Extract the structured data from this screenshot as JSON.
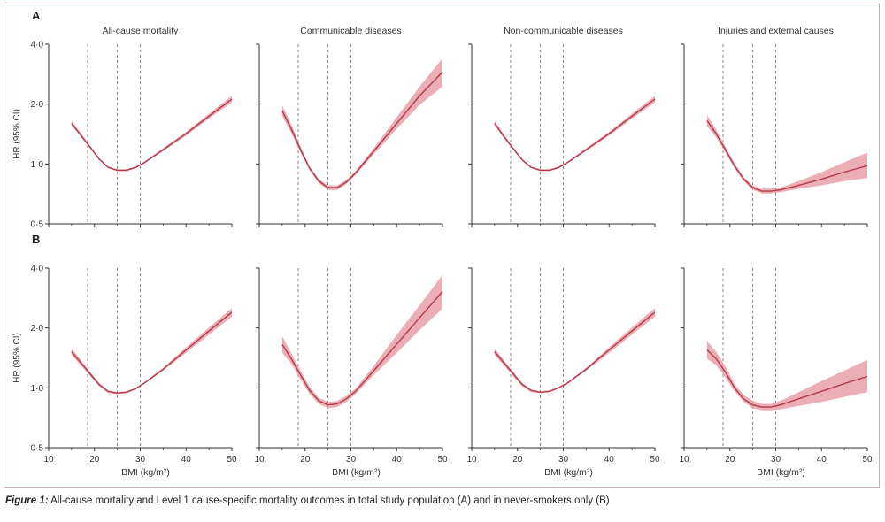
{
  "caption": {
    "label": "Figure 1:",
    "text": " All-cause mortality and Level 1 cause-specific mortality outcomes in total study population (A) and in never-smokers only (B)"
  },
  "chart_data": {
    "type": "line",
    "y_scale": "log",
    "ylabel": "HR (95% CI)",
    "xlabel": "BMI (kg/m²)",
    "xlim": [
      10,
      50
    ],
    "ylim": [
      0.5,
      4.0
    ],
    "x_ticks": [
      "10",
      "20",
      "30",
      "40",
      "50"
    ],
    "x_tick_values": [
      10,
      20,
      30,
      40,
      50
    ],
    "x_minor_ticks": [
      15,
      25,
      35,
      45
    ],
    "y_ticks": [
      "0·5",
      "1·0",
      "2·0",
      "4·0"
    ],
    "y_tick_values": [
      0.5,
      1.0,
      2.0,
      4.0
    ],
    "reference_lines_bmi": [
      18.5,
      25,
      30
    ],
    "colors": {
      "line": "#b5384a",
      "band": "#e8a0a7"
    },
    "rows": [
      {
        "label": "A",
        "panels": [
          {
            "title": "All-cause mortality",
            "x": [
              15,
              17,
              19,
              21,
              23,
              25,
              27,
              29,
              31,
              35,
              40,
              45,
              50
            ],
            "y": [
              1.6,
              1.4,
              1.22,
              1.06,
              0.96,
              0.93,
              0.93,
              0.96,
              1.02,
              1.18,
              1.42,
              1.74,
              2.12
            ],
            "lower": [
              1.56,
              1.37,
              1.2,
              1.05,
              0.95,
              0.92,
              0.92,
              0.95,
              1.01,
              1.16,
              1.39,
              1.69,
              2.04
            ],
            "upper": [
              1.65,
              1.43,
              1.24,
              1.07,
              0.97,
              0.94,
              0.94,
              0.97,
              1.03,
              1.2,
              1.45,
              1.79,
              2.2
            ]
          },
          {
            "title": "Communicable diseases",
            "x": [
              15,
              17,
              19,
              21,
              23,
              25,
              27,
              29,
              31,
              35,
              40,
              45,
              50
            ],
            "y": [
              1.85,
              1.5,
              1.18,
              0.95,
              0.82,
              0.76,
              0.76,
              0.81,
              0.9,
              1.16,
              1.6,
              2.2,
              2.9
            ],
            "lower": [
              1.74,
              1.43,
              1.14,
              0.93,
              0.8,
              0.74,
              0.74,
              0.79,
              0.88,
              1.12,
              1.5,
              1.98,
              2.45
            ],
            "upper": [
              1.97,
              1.58,
              1.22,
              0.97,
              0.84,
              0.78,
              0.78,
              0.83,
              0.92,
              1.2,
              1.72,
              2.45,
              3.4
            ]
          },
          {
            "title": "Non-communicable diseases",
            "x": [
              15,
              17,
              19,
              21,
              23,
              25,
              27,
              29,
              31,
              35,
              40,
              45,
              50
            ],
            "y": [
              1.6,
              1.38,
              1.2,
              1.05,
              0.96,
              0.93,
              0.93,
              0.96,
              1.02,
              1.18,
              1.42,
              1.74,
              2.12
            ],
            "lower": [
              1.56,
              1.35,
              1.18,
              1.04,
              0.95,
              0.92,
              0.92,
              0.95,
              1.01,
              1.16,
              1.39,
              1.69,
              2.04
            ],
            "upper": [
              1.65,
              1.41,
              1.22,
              1.06,
              0.97,
              0.94,
              0.94,
              0.97,
              1.03,
              1.2,
              1.45,
              1.79,
              2.2
            ]
          },
          {
            "title": "Injuries and external causes",
            "x": [
              15,
              17,
              19,
              21,
              23,
              25,
              27,
              29,
              31,
              35,
              40,
              45,
              50
            ],
            "y": [
              1.65,
              1.42,
              1.18,
              0.98,
              0.84,
              0.76,
              0.73,
              0.73,
              0.74,
              0.78,
              0.84,
              0.91,
              0.98
            ],
            "lower": [
              1.55,
              1.36,
              1.14,
              0.95,
              0.82,
              0.74,
              0.71,
              0.71,
              0.72,
              0.75,
              0.78,
              0.82,
              0.85
            ],
            "upper": [
              1.76,
              1.49,
              1.22,
              1.01,
              0.86,
              0.78,
              0.75,
              0.75,
              0.76,
              0.82,
              0.91,
              1.02,
              1.14
            ]
          }
        ]
      },
      {
        "label": "B",
        "panels": [
          {
            "title": "",
            "x": [
              15,
              17,
              19,
              21,
              23,
              25,
              27,
              29,
              31,
              35,
              40,
              45,
              50
            ],
            "y": [
              1.52,
              1.34,
              1.18,
              1.04,
              0.96,
              0.94,
              0.95,
              0.99,
              1.06,
              1.24,
              1.55,
              1.93,
              2.4
            ],
            "lower": [
              1.46,
              1.3,
              1.15,
              1.02,
              0.94,
              0.93,
              0.94,
              0.98,
              1.05,
              1.22,
              1.5,
              1.85,
              2.28
            ],
            "upper": [
              1.58,
              1.38,
              1.21,
              1.06,
              0.97,
              0.95,
              0.96,
              1.0,
              1.07,
              1.26,
              1.6,
              2.01,
              2.52
            ]
          },
          {
            "title": "",
            "x": [
              15,
              17,
              19,
              21,
              23,
              25,
              27,
              29,
              31,
              35,
              40,
              45,
              50
            ],
            "y": [
              1.65,
              1.4,
              1.16,
              0.97,
              0.86,
              0.82,
              0.83,
              0.88,
              0.96,
              1.22,
              1.66,
              2.25,
              3.05
            ],
            "lower": [
              1.5,
              1.32,
              1.1,
              0.93,
              0.83,
              0.79,
              0.8,
              0.85,
              0.93,
              1.16,
              1.5,
              1.95,
              2.5
            ],
            "upper": [
              1.82,
              1.49,
              1.22,
              1.01,
              0.89,
              0.85,
              0.86,
              0.91,
              0.99,
              1.29,
              1.85,
              2.6,
              3.7
            ]
          },
          {
            "title": "",
            "x": [
              15,
              17,
              19,
              21,
              23,
              25,
              27,
              29,
              31,
              35,
              40,
              45,
              50
            ],
            "y": [
              1.52,
              1.34,
              1.18,
              1.04,
              0.97,
              0.95,
              0.96,
              1.0,
              1.06,
              1.24,
              1.55,
              1.93,
              2.4
            ],
            "lower": [
              1.46,
              1.3,
              1.15,
              1.02,
              0.95,
              0.94,
              0.95,
              0.99,
              1.05,
              1.22,
              1.5,
              1.85,
              2.28
            ],
            "upper": [
              1.58,
              1.38,
              1.21,
              1.06,
              0.98,
              0.96,
              0.97,
              1.01,
              1.07,
              1.26,
              1.6,
              2.01,
              2.52
            ]
          },
          {
            "title": "",
            "x": [
              15,
              17,
              19,
              21,
              23,
              25,
              27,
              29,
              31,
              35,
              40,
              45,
              50
            ],
            "y": [
              1.55,
              1.4,
              1.2,
              1.0,
              0.88,
              0.82,
              0.8,
              0.8,
              0.82,
              0.88,
              0.96,
              1.05,
              1.14
            ],
            "lower": [
              1.4,
              1.3,
              1.13,
              0.96,
              0.85,
              0.79,
              0.77,
              0.77,
              0.78,
              0.81,
              0.85,
              0.9,
              0.95
            ],
            "upper": [
              1.72,
              1.52,
              1.28,
              1.05,
              0.92,
              0.86,
              0.83,
              0.83,
              0.86,
              0.95,
              1.08,
              1.22,
              1.38
            ]
          }
        ]
      }
    ]
  }
}
